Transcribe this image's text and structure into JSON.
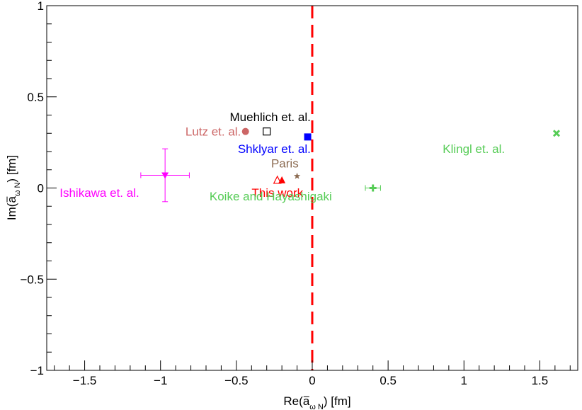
{
  "chart_data": {
    "type": "scatter",
    "title": "",
    "xlabel": "Re(ā_{ωN}) [fm]",
    "ylabel": "Im(ā_{ωN}) [fm]",
    "xlabel_parts": {
      "pre": "Re(",
      "main": "a",
      "sub": "ω N",
      "post": ") [fm]"
    },
    "ylabel_parts": {
      "pre": "Im(",
      "main": "a",
      "sub": "ω N",
      "post": ") [fm]"
    },
    "xlim": [
      -1.75,
      1.75
    ],
    "ylim": [
      -1,
      1
    ],
    "x_ticks": [
      -1.5,
      -1,
      -0.5,
      0,
      0.5,
      1,
      1.5
    ],
    "x_tick_labels": [
      "−1.5",
      "−1",
      "−0.5",
      "0",
      "0.5",
      "1",
      "1.5"
    ],
    "y_ticks": [
      -1,
      -0.5,
      0,
      0.5,
      1
    ],
    "y_tick_labels": [
      "−1",
      "−0.5",
      "0",
      "0.5",
      "1"
    ],
    "reference_line": {
      "x": 0,
      "style": "dashed",
      "color": "#ff0000"
    },
    "points": [
      {
        "name": "Ishikawa et. al.",
        "x": -0.97,
        "y": 0.07,
        "xerr": 0.16,
        "yerr": 0.145,
        "marker": "triangle-down",
        "color": "#ff00ff",
        "label_x": -1.14,
        "label_y": -0.025
      },
      {
        "name": "Lutz et. al.",
        "x": -0.44,
        "y": 0.31,
        "marker": "circle",
        "color": "#cc6666",
        "label_x": -0.47,
        "label_y": 0.31
      },
      {
        "name": "Muehlich et. al.",
        "x": -0.3,
        "y": 0.31,
        "marker": "open-square",
        "color": "#000000",
        "label_x": -0.01,
        "label_y": 0.39
      },
      {
        "name": "Shklyar et. al.",
        "x": -0.03,
        "y": 0.28,
        "marker": "square",
        "color": "#0000ff",
        "label_x": -0.01,
        "label_y": 0.215
      },
      {
        "name": "Paris",
        "x": -0.1,
        "y": 0.065,
        "marker": "star",
        "color": "#8b6a50",
        "label_x": -0.09,
        "label_y": 0.135
      },
      {
        "name": "This work",
        "x": -0.23,
        "y": 0.045,
        "marker": "open-triangle-up",
        "color": "#ff0000",
        "label_x": -0.06,
        "label_y": -0.025
      },
      {
        "name": "This work (filled)",
        "x": -0.2,
        "y": 0.045,
        "marker": "triangle-up",
        "color": "#ff0000"
      },
      {
        "name": "Koike and Hayashigaki",
        "x": 0.4,
        "y": 0.0,
        "xerr": 0.05,
        "marker": "plus",
        "color": "#55cc55",
        "label_x": 0.13,
        "label_y": -0.045
      },
      {
        "name": "Klingl et. al.",
        "x": 1.61,
        "y": 0.3,
        "marker": "x",
        "color": "#55cc55",
        "label_x": 1.27,
        "label_y": 0.215
      }
    ]
  }
}
